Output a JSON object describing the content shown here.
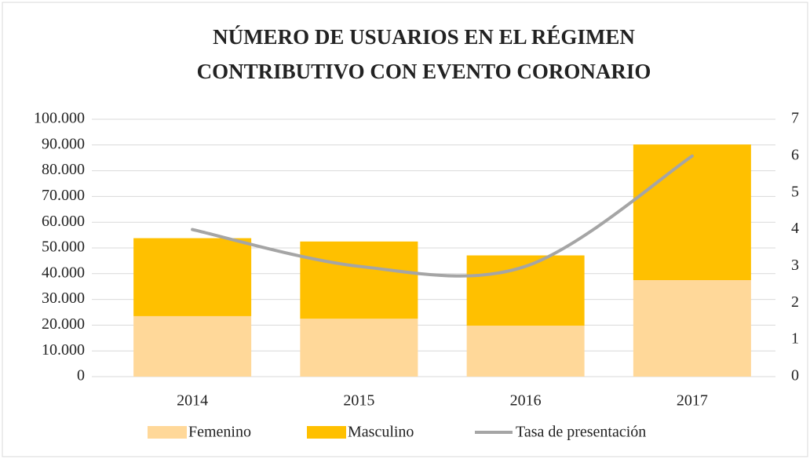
{
  "chart_data": {
    "type": "bar",
    "stacked": true,
    "title": [
      "NÚMERO DE USUARIOS EN EL RÉGIMEN",
      "CONTRIBUTIVO CON EVENTO CORONARIO"
    ],
    "categories": [
      "2014",
      "2015",
      "2016",
      "2017"
    ],
    "series": [
      {
        "name": "Femenino",
        "type": "bar",
        "color": "#ffd899",
        "values": [
          23500,
          22500,
          19800,
          37500
        ]
      },
      {
        "name": "Masculino",
        "type": "bar",
        "color": "#ffc000",
        "values": [
          30300,
          30000,
          27300,
          52700
        ]
      },
      {
        "name": "Tasa de presentación",
        "type": "line",
        "axis": "y2",
        "color": "#a5a5a5",
        "values": [
          4,
          3,
          3,
          6
        ]
      }
    ],
    "ylim": [
      0,
      100000
    ],
    "yticks": [
      0,
      {
        "value": 10000,
        "label": "10.000"
      },
      {
        "value": 20000,
        "label": "20.000"
      },
      {
        "value": 30000,
        "label": "30.000"
      },
      {
        "value": 40000,
        "label": "40.000"
      },
      {
        "value": 50000,
        "label": "50.000"
      },
      {
        "value": 60000,
        "label": "60.000"
      },
      {
        "value": 70000,
        "label": "70.000"
      },
      {
        "value": 80000,
        "label": "80.000"
      },
      {
        "value": 90000,
        "label": "90.000"
      },
      {
        "value": 100000,
        "label": "100.000"
      }
    ],
    "y2lim": [
      0,
      7
    ],
    "y2ticks": [
      0,
      1,
      2,
      3,
      4,
      5,
      6,
      7
    ],
    "grid": true,
    "legend": "bottom"
  }
}
